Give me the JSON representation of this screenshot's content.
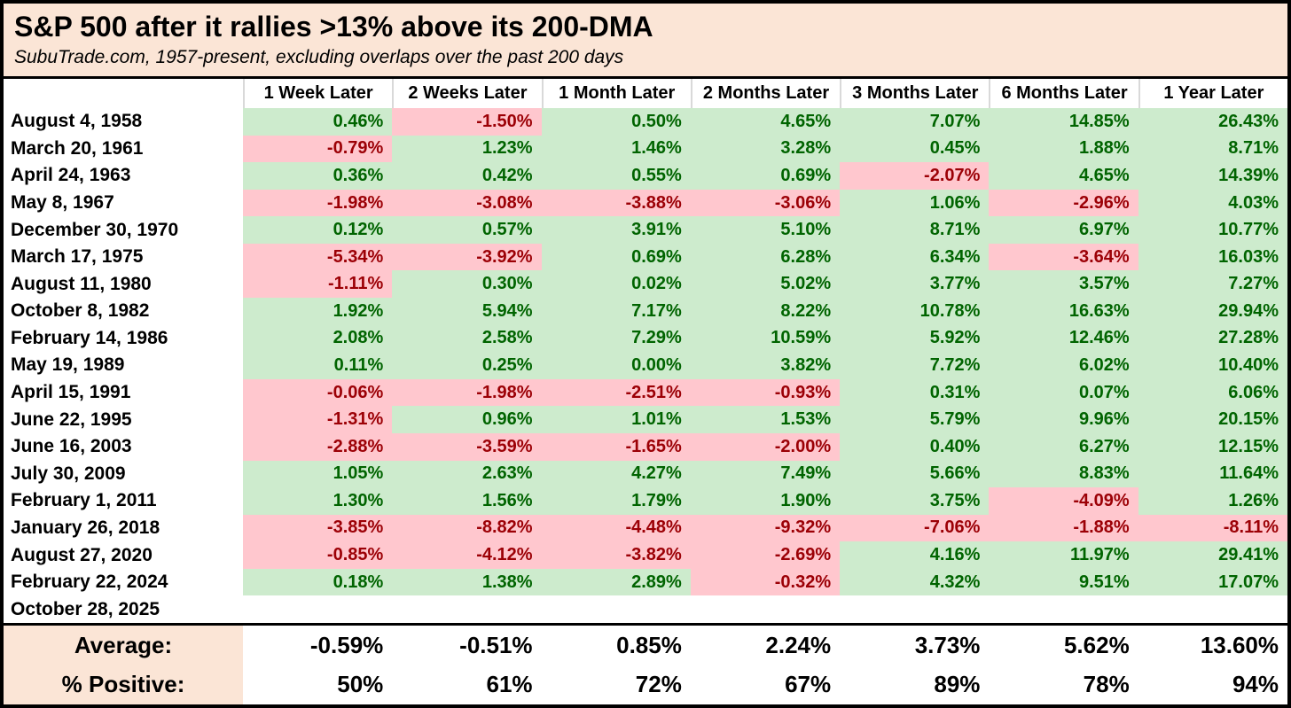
{
  "colors": {
    "peach_fill": "#fbe5d6",
    "positive_fill": "#cdebcd",
    "positive_text": "#006400",
    "negative_fill": "#ffc7ce",
    "negative_text": "#9c0006",
    "border": "#000000",
    "header_separator": "#d9d9d9"
  },
  "chart_data": {
    "type": "table",
    "title": "S&P 500 after it rallies >13% above its 200-DMA",
    "subtitle": "SubuTrade.com, 1957-present, excluding overlaps over the past 200 days",
    "value_unit": "%",
    "columns": [
      "1 Week Later",
      "2 Weeks Later",
      "1 Month Later",
      "2 Months Later",
      "3 Months Later",
      "6 Months Later",
      "1 Year Later"
    ],
    "rows": [
      {
        "date": "August 4, 1958",
        "values": [
          0.46,
          -1.5,
          0.5,
          4.65,
          7.07,
          14.85,
          26.43
        ]
      },
      {
        "date": "March 20, 1961",
        "values": [
          -0.79,
          1.23,
          1.46,
          3.28,
          0.45,
          1.88,
          8.71
        ]
      },
      {
        "date": "April 24, 1963",
        "values": [
          0.36,
          0.42,
          0.55,
          0.69,
          -2.07,
          4.65,
          14.39
        ]
      },
      {
        "date": "May 8, 1967",
        "values": [
          -1.98,
          -3.08,
          -3.88,
          -3.06,
          1.06,
          -2.96,
          4.03
        ]
      },
      {
        "date": "December 30, 1970",
        "values": [
          0.12,
          0.57,
          3.91,
          5.1,
          8.71,
          6.97,
          10.77
        ]
      },
      {
        "date": "March 17, 1975",
        "values": [
          -5.34,
          -3.92,
          0.69,
          6.28,
          6.34,
          -3.64,
          16.03
        ]
      },
      {
        "date": "August 11, 1980",
        "values": [
          -1.11,
          0.3,
          0.02,
          5.02,
          3.77,
          3.57,
          7.27
        ]
      },
      {
        "date": "October 8, 1982",
        "values": [
          1.92,
          5.94,
          7.17,
          8.22,
          10.78,
          16.63,
          29.94
        ]
      },
      {
        "date": "February 14, 1986",
        "values": [
          2.08,
          2.58,
          7.29,
          10.59,
          5.92,
          12.46,
          27.28
        ]
      },
      {
        "date": "May 19, 1989",
        "values": [
          0.11,
          0.25,
          0.0,
          3.82,
          7.72,
          6.02,
          10.4
        ]
      },
      {
        "date": "April 15, 1991",
        "values": [
          -0.06,
          -1.98,
          -2.51,
          -0.93,
          0.31,
          0.07,
          6.06
        ]
      },
      {
        "date": "June 22, 1995",
        "values": [
          -1.31,
          0.96,
          1.01,
          1.53,
          5.79,
          9.96,
          20.15
        ]
      },
      {
        "date": "June 16, 2003",
        "values": [
          -2.88,
          -3.59,
          -1.65,
          -2.0,
          0.4,
          6.27,
          12.15
        ]
      },
      {
        "date": "July 30, 2009",
        "values": [
          1.05,
          2.63,
          4.27,
          7.49,
          5.66,
          8.83,
          11.64
        ]
      },
      {
        "date": "February 1, 2011",
        "values": [
          1.3,
          1.56,
          1.79,
          1.9,
          3.75,
          -4.09,
          1.26
        ]
      },
      {
        "date": "January 26, 2018",
        "values": [
          -3.85,
          -8.82,
          -4.48,
          -9.32,
          -7.06,
          -1.88,
          -8.11
        ]
      },
      {
        "date": "August 27, 2020",
        "values": [
          -0.85,
          -4.12,
          -3.82,
          -2.69,
          4.16,
          11.97,
          29.41
        ]
      },
      {
        "date": "February 22, 2024",
        "values": [
          0.18,
          1.38,
          2.89,
          -0.32,
          4.32,
          9.51,
          17.07
        ]
      },
      {
        "date": "October 28, 2025",
        "values": []
      }
    ],
    "summary": {
      "average_label": "Average:",
      "average": [
        -0.59,
        -0.51,
        0.85,
        2.24,
        3.73,
        5.62,
        13.6
      ],
      "pct_positive_label": "% Positive:",
      "pct_positive": [
        50,
        61,
        72,
        67,
        89,
        78,
        94
      ]
    }
  }
}
